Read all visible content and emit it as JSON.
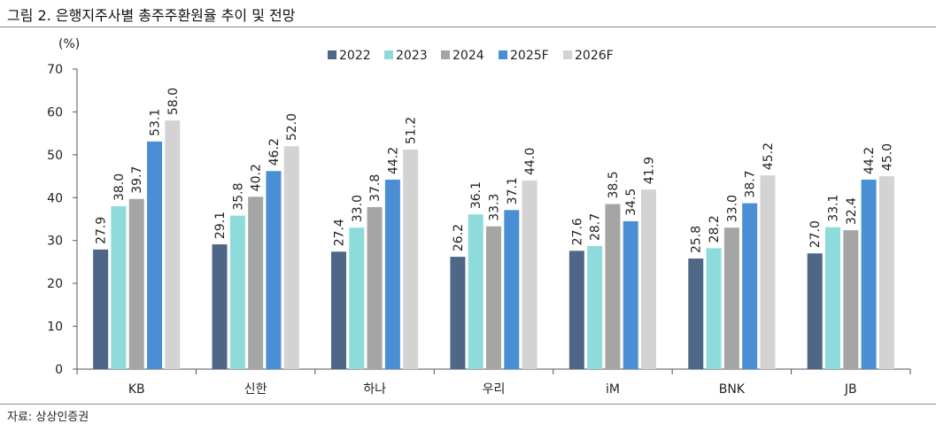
{
  "figure": {
    "title": "그림 2. 은행지주사별 총주주환원율 추이 및 전망",
    "source": "자료: 상상인증권"
  },
  "colors": {
    "2022": "#4e6787",
    "2023": "#8ddcdb",
    "2024": "#a5a5a5",
    "2025F": "#4a8fd6",
    "2026F": "#d3d3d3"
  },
  "chart_data": {
    "type": "bar",
    "title": "",
    "xlabel": "",
    "ylabel": "",
    "unit_label": "(%)",
    "ylim": [
      0,
      70
    ],
    "yticks": [
      0,
      10,
      20,
      30,
      40,
      50,
      60,
      70
    ],
    "grid": false,
    "legend_position": "top-center",
    "categories": [
      "KB",
      "신한",
      "하나",
      "우리",
      "iM",
      "BNK",
      "JB"
    ],
    "series": [
      {
        "name": "2022",
        "values": [
          27.9,
          29.1,
          27.4,
          26.2,
          27.6,
          25.8,
          27.0
        ]
      },
      {
        "name": "2023",
        "values": [
          38.0,
          35.8,
          33.0,
          36.1,
          28.7,
          28.2,
          33.1
        ]
      },
      {
        "name": "2024",
        "values": [
          39.7,
          40.2,
          37.8,
          33.3,
          38.5,
          33.0,
          32.4
        ]
      },
      {
        "name": "2025F",
        "values": [
          53.1,
          46.2,
          44.2,
          37.1,
          34.5,
          38.7,
          44.2
        ]
      },
      {
        "name": "2026F",
        "values": [
          58.0,
          52.0,
          51.2,
          44.0,
          41.9,
          45.2,
          45.0
        ]
      }
    ]
  }
}
